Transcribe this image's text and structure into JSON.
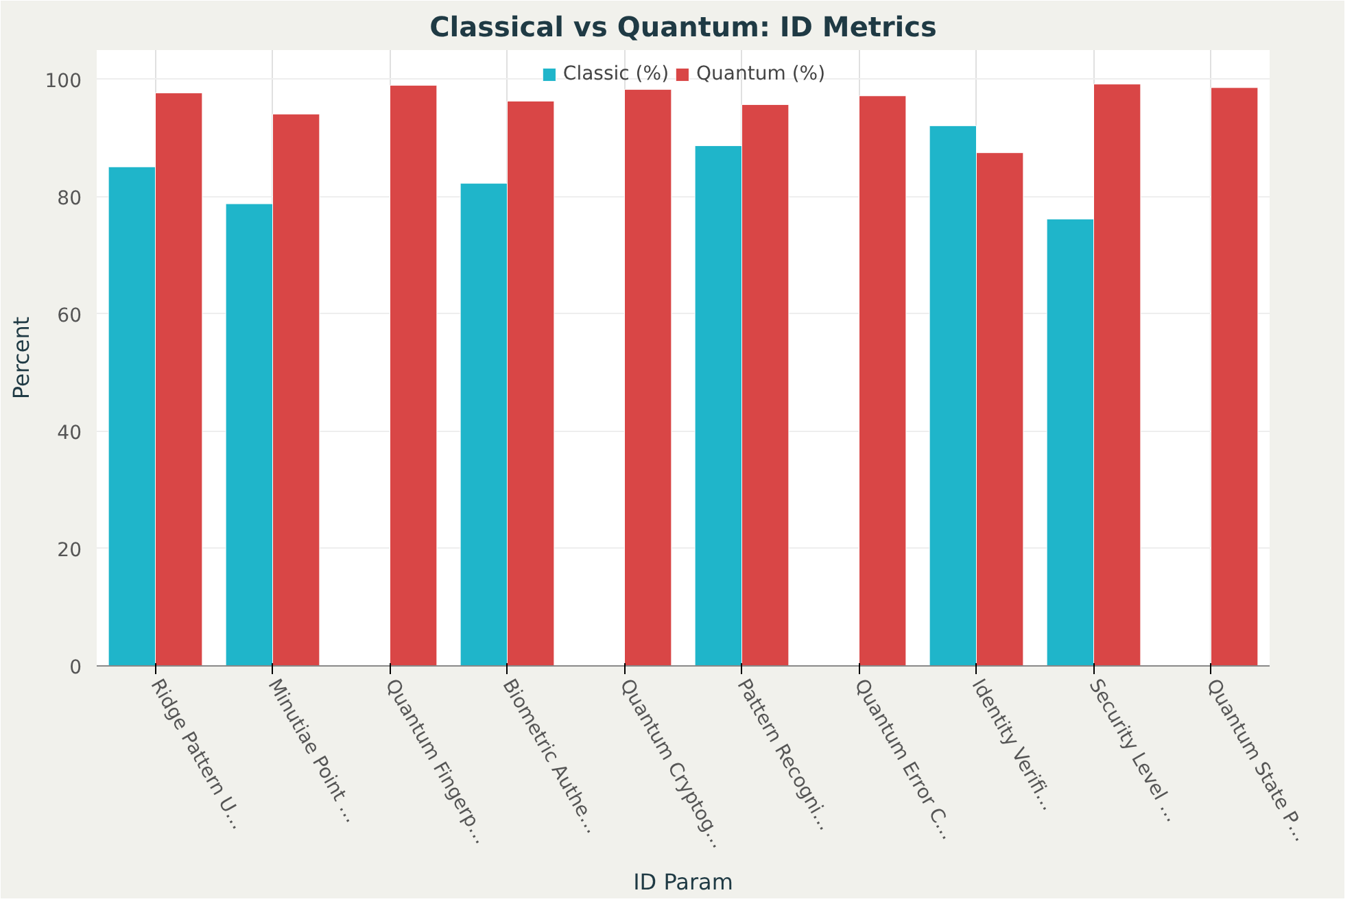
{
  "chart_data": {
    "type": "bar",
    "title": "Classical vs Quantum: ID Metrics",
    "xlabel": "ID Param",
    "ylabel": "Percent",
    "categories": [
      "Ridge Pattern U…",
      "Minutiae Point …",
      "Quantum Fingerp…",
      "Biometric Authe…",
      "Quantum Cryptog…",
      "Pattern Recogni…",
      "Quantum Error C…",
      "Identity Verifi…",
      "Security Level …",
      "Quantum State P…"
    ],
    "series": [
      {
        "name": "Classic (%)",
        "color": "#1fb5ca",
        "values": [
          85.1,
          78.8,
          null,
          82.3,
          null,
          88.7,
          null,
          92.1,
          76.2,
          null
        ]
      },
      {
        "name": "Quantum (%)",
        "color": "#d94646",
        "values": [
          97.7,
          94.1,
          99.0,
          96.3,
          98.3,
          95.7,
          97.2,
          87.5,
          99.2,
          98.6
        ]
      }
    ],
    "ylim": [
      0,
      105
    ],
    "yticks": [
      0,
      20,
      40,
      60,
      80,
      100
    ],
    "grid": true,
    "legend": "top"
  }
}
